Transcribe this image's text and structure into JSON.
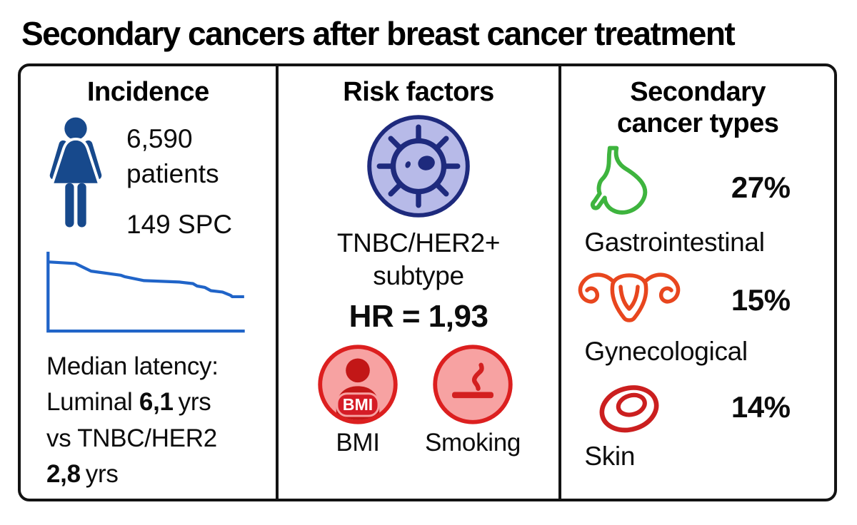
{
  "title": "Secondary cancers after breast cancer treatment",
  "colors": {
    "text_black": "#0c0c0c",
    "border_black": "#131313",
    "woman_navy": "#17498c",
    "chart_blue": "#2064c8",
    "cell_fill": "#b7bae8",
    "cell_stroke": "#1e2a7d",
    "risk_pink": "#f7a2a2",
    "risk_red_border": "#dc1f1f",
    "risk_dark_red": "#c21717",
    "badge_red": "#d51c26",
    "stomach_green": "#3eb43e",
    "uterus_orange": "#e8461e",
    "skin_red": "#cb1f1f"
  },
  "panels": {
    "incidence": {
      "heading": "Incidence",
      "patients_value": "6,590",
      "patients_label": "patients",
      "spc_value": "149 SPC",
      "latency_title": "Median latency:",
      "luminal_prefix": "Luminal",
      "luminal_value": "6,1",
      "luminal_unit": "yrs",
      "vs_line": "vs TNBC/HER2",
      "tnbc_value": "2,8",
      "tnbc_unit": "yrs"
    },
    "risk_factors": {
      "heading": "Risk factors",
      "subtype_line1": "TNBC/HER2+",
      "subtype_line2": "subtype",
      "hazard_ratio": "HR = 1,93",
      "bmi_badge": "BMI",
      "bmi_label": "BMI",
      "smoking_label": "Smoking"
    },
    "secondary_types": {
      "heading_line1": "Secondary",
      "heading_line2": "cancer types",
      "items": [
        {
          "name": "gastrointestinal",
          "label": "Gastrointestinal",
          "percent": "27%"
        },
        {
          "name": "gynecological",
          "label": "Gynecological",
          "percent": "15%"
        },
        {
          "name": "skin",
          "label": "Skin",
          "percent": "14%"
        }
      ]
    }
  },
  "chart_data": {
    "type": "line",
    "title": "SPC-free step curve (unlabeled sparkline, Kaplan-Meier style)",
    "xlabel": "",
    "ylabel": "",
    "legend": false,
    "grid": false,
    "tick_labels": false,
    "axes_shown": true,
    "line_color": "#2064c8",
    "x_range_pct": [
      0,
      100
    ],
    "y_drop_from_top_pct_range": [
      0,
      100
    ],
    "points": [
      [
        0,
        12
      ],
      [
        14,
        14
      ],
      [
        22,
        24
      ],
      [
        37,
        29
      ],
      [
        39,
        31
      ],
      [
        49,
        36
      ],
      [
        67,
        38
      ],
      [
        74,
        40
      ],
      [
        76,
        43
      ],
      [
        80,
        45
      ],
      [
        83,
        49
      ],
      [
        89,
        51
      ],
      [
        93,
        55
      ],
      [
        94,
        57
      ],
      [
        100,
        57
      ]
    ]
  }
}
